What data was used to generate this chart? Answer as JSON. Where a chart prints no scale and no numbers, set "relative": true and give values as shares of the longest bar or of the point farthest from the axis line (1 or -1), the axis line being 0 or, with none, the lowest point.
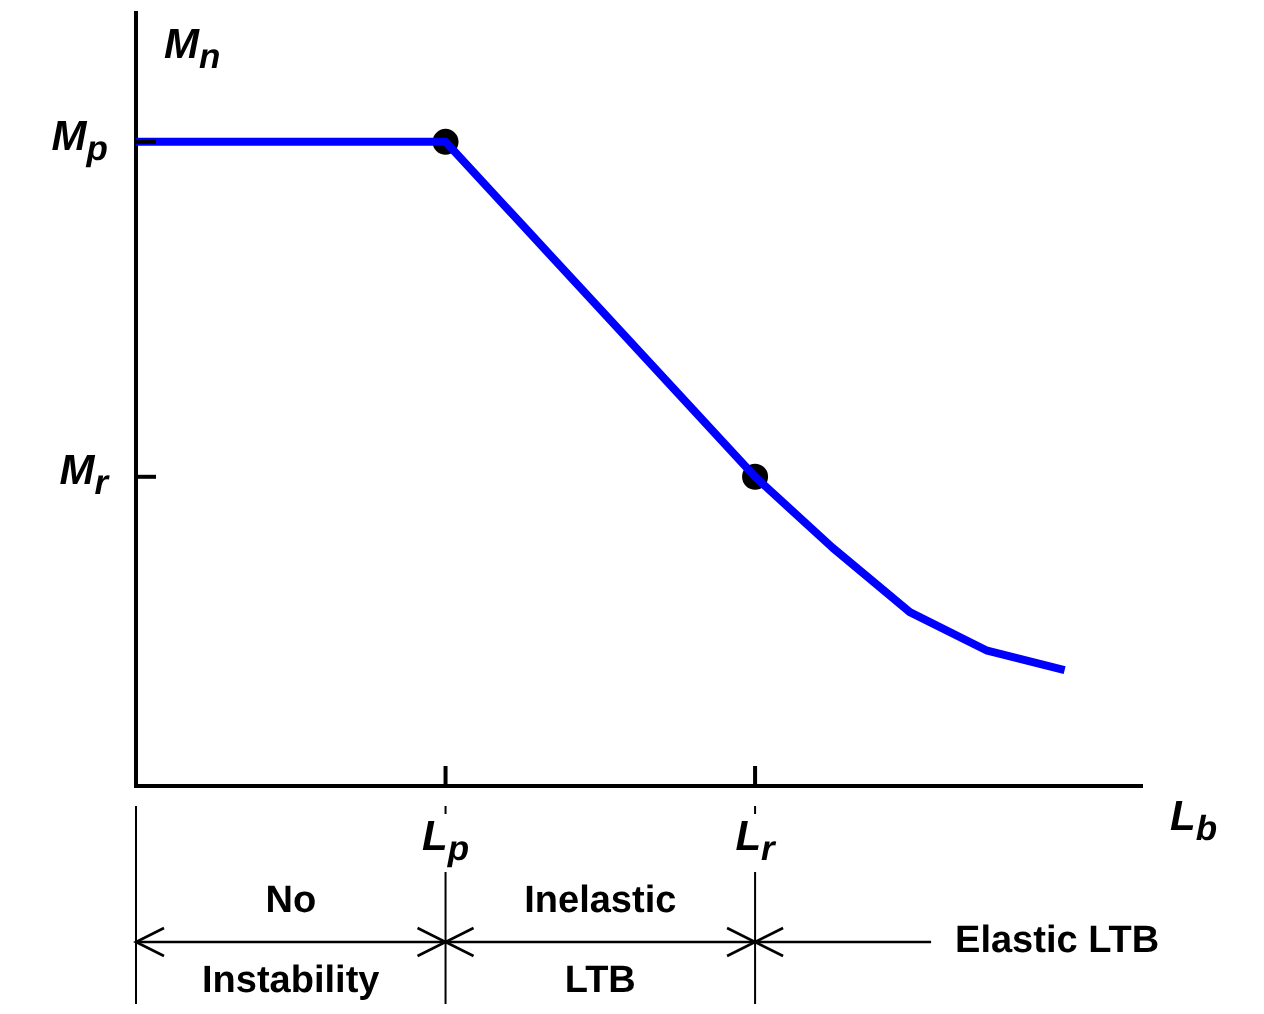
{
  "chart_data": {
    "type": "line",
    "relative": true,
    "xlabel": "L$_{b}$",
    "ylabel": "M$_{n}$",
    "categories": [
      null,
      null,
      null,
      null,
      "L$_{p}$",
      null,
      null,
      null,
      "L$_{r}$",
      null,
      null,
      null,
      null,
      null
    ],
    "series": [
      {
        "type": "line",
        "color": "#0000ff",
        "marker": "none",
        "values": [
          1,
          1,
          1,
          1,
          1,
          0.87,
          0.74,
          0.61,
          0.48,
          0.37,
          0.27,
          0.21,
          0.18,
          null
        ]
      },
      {
        "type": "scatter",
        "color": "#000000",
        "marker": "circle",
        "values": [
          null,
          null,
          null,
          null,
          1,
          null,
          null,
          null,
          0.48,
          null,
          null,
          null,
          null,
          null
        ]
      }
    ],
    "annotations": [
      "M$_{p}$",
      "M$_{r}$",
      "No Instability",
      "Inelastic LTB",
      "Elastic LTB"
    ]
  }
}
